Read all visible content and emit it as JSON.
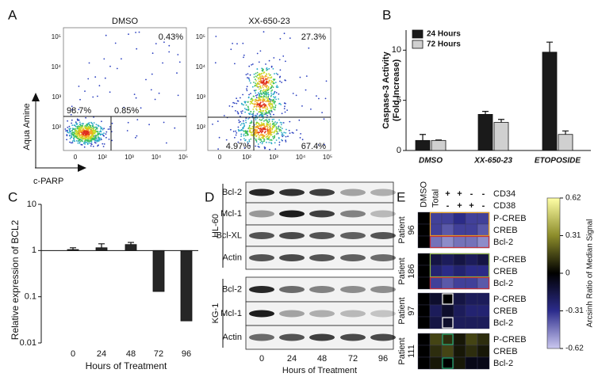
{
  "panel_a": {
    "label": "A",
    "plots": [
      {
        "title": "DMSO",
        "quadrants": [
          "0.43%",
          "98.7%",
          "0.85%"
        ]
      },
      {
        "title": "XX-650-23",
        "quadrants": [
          "27.3%",
          "4.97%",
          "67.4%"
        ]
      }
    ],
    "yticks": [
      "10⁵",
      "10⁴",
      "10³",
      "10²"
    ],
    "xticks": [
      "0",
      "10²",
      "10³",
      "10⁴",
      "10⁵"
    ],
    "ylabel": "Aqua Amine",
    "xlabel": "c-PARP"
  },
  "chart_data": [
    {
      "type": "bar",
      "panel_label": "B",
      "ylabel": [
        "Caspase-3 Activity",
        "(Fold Increase)"
      ],
      "categories": [
        "DMSO",
        "XX-650-23",
        "ETOPOSIDE"
      ],
      "series": [
        {
          "name": "24 Hours",
          "color": "#1a1a1a",
          "values": [
            1.0,
            3.6,
            9.8
          ],
          "errors": [
            0.6,
            0.3,
            1.0
          ]
        },
        {
          "name": "72 Hours",
          "color": "#d0d0d0",
          "values": [
            1.0,
            2.8,
            1.6
          ],
          "errors": [
            0.05,
            0.3,
            0.35
          ]
        }
      ],
      "ylim": [
        0,
        12
      ],
      "yticks": [
        0,
        5,
        10
      ],
      "legend": "upper left"
    },
    {
      "type": "bar",
      "panel_label": "C",
      "log": true,
      "ylabel": "Relative expression of BCL2",
      "xlabel": "Hours of Treatment",
      "categories": [
        "0",
        "24",
        "48",
        "72",
        "96"
      ],
      "values": [
        1.05,
        1.15,
        1.35,
        0.13,
        0.03
      ],
      "errors": [
        0.1,
        0.25,
        0.15,
        null,
        null
      ],
      "color": "#262626",
      "ylim": [
        0.01,
        10
      ],
      "yticks": [
        0.01,
        0.1,
        1,
        10
      ]
    }
  ],
  "panel_d": {
    "label": "D",
    "blocks": [
      {
        "name": "HL-60",
        "rows": [
          "Bcl-2",
          "Mcl-1",
          "Bcl-XL",
          "Actin"
        ]
      },
      {
        "name": "KG-1",
        "rows": [
          "Bcl-2",
          "Mcl-1",
          "Actin"
        ]
      }
    ],
    "lanes": [
      "0",
      "24",
      "48",
      "72",
      "96"
    ],
    "xlabel": "Hours of Treatment"
  },
  "panel_e": {
    "label": "E",
    "columns": [
      "DMSO",
      "Total"
    ],
    "markers": [
      {
        "name": "CD34",
        "signs": [
          "+",
          "+",
          "-",
          "-"
        ]
      },
      {
        "name": "CD38",
        "signs": [
          "-",
          "+",
          "+",
          "-"
        ]
      }
    ],
    "patients": [
      {
        "label": "Patient",
        "id": "96",
        "rows": [
          "P-CREB",
          "CREB",
          "Bcl-2"
        ],
        "values": [
          [
            0,
            -0.35,
            -0.35,
            -0.3,
            -0.35,
            -0.35
          ],
          [
            0,
            -0.35,
            -0.4,
            -0.35,
            -0.35,
            -0.4
          ],
          [
            0,
            -0.45,
            -0.5,
            -0.45,
            -0.45,
            -0.5
          ]
        ]
      },
      {
        "label": "Patient",
        "id": "186",
        "rows": [
          "P-CREB",
          "CREB",
          "Bcl-2"
        ],
        "values": [
          [
            0,
            -0.15,
            -0.2,
            -0.15,
            -0.2,
            -0.15
          ],
          [
            0,
            -0.25,
            -0.3,
            -0.25,
            -0.3,
            -0.3
          ],
          [
            0,
            -0.35,
            -0.4,
            -0.35,
            -0.35,
            -0.4
          ]
        ]
      },
      {
        "label": "Patient",
        "id": "97",
        "rows": [
          "P-CREB",
          "CREB",
          "Bcl-2"
        ],
        "values": [
          [
            0,
            -0.1,
            0,
            -0.15,
            -0.2,
            -0.2
          ],
          [
            0,
            -0.2,
            -0.1,
            -0.2,
            -0.25,
            -0.25
          ],
          [
            0,
            -0.15,
            -0.1,
            -0.2,
            -0.2,
            -0.2
          ]
        ]
      },
      {
        "label": "Patient",
        "id": "111",
        "rows": [
          "P-CREB",
          "CREB",
          "Bcl-2"
        ],
        "values": [
          [
            0,
            0.15,
            0.1,
            0.05,
            0.15,
            0.1
          ],
          [
            0,
            0.1,
            0.15,
            0.05,
            0.1,
            0.05
          ],
          [
            0,
            0.05,
            0,
            0.05,
            -0.05,
            -0.05
          ]
        ]
      }
    ],
    "colorbar": {
      "title": "Arcsinh Ratio of Median Signal",
      "clim": [
        -0.62,
        0.62
      ],
      "ticks": [
        0.62,
        0.31,
        0,
        -0.31,
        -0.62
      ],
      "colors": [
        "#cbc8f0",
        "#2c2c8c",
        "#000000",
        "#8c8c2a",
        "#ffffa6"
      ]
    }
  }
}
